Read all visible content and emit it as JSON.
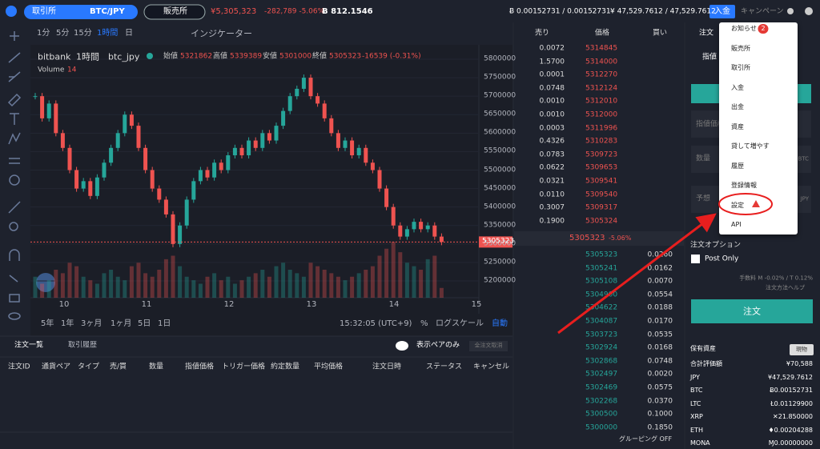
{
  "header": {
    "exchange_tab": "取引所",
    "pair": "BTC/JPY",
    "store_tab": "販売所",
    "price": "¥5,305,323",
    "change": "-282,789 -5.06%",
    "volume": "Ƀ 812.1546",
    "btc_balance": "Ƀ 0.00152731 / 0.00152731",
    "jpy_balance": "¥ 47,529.7612 / 47,529.7612",
    "deposit": "入金",
    "campaign": "キャンペーン"
  },
  "toolbar": {
    "intervals": [
      "1分",
      "5分",
      "15分",
      "1時間",
      "日"
    ],
    "indicator": "インジケーター"
  },
  "price_chart": {
    "source": "bitbank",
    "interval": "1時間",
    "symbol": "btc_jpy",
    "ohlc_labels": [
      "始値",
      "高値",
      "安値",
      "終値"
    ],
    "ohlc_values": [
      "5321862",
      "5339389",
      "5301000",
      "5305323"
    ],
    "change": "-16539 (-0.31%)",
    "volume_label": "Volume",
    "volume_value": "14",
    "yticks": [
      5800000,
      5750000,
      5700000,
      5650000,
      5600000,
      5550000,
      5500000,
      5450000,
      5400000,
      5350000,
      5300000,
      5250000,
      5200000
    ],
    "current_price": "5305323",
    "xticks": [
      "10",
      "11",
      "12",
      "13",
      "14",
      "15"
    ],
    "closes": [
      5700000,
      5640000,
      5680000,
      5600000,
      5560000,
      5500000,
      5450000,
      5470000,
      5430000,
      5480000,
      5520000,
      5560000,
      5600000,
      5650000,
      5620000,
      5560000,
      5500000,
      5450000,
      5420000,
      5380000,
      5300000,
      5350000,
      5420000,
      5470000,
      5500000,
      5480000,
      5520000,
      5500000,
      5540000,
      5560000,
      5540000,
      5580000,
      5560000,
      5600000,
      5580000,
      5620000,
      5660000,
      5700000,
      5720000,
      5750000,
      5700000,
      5680000,
      5640000,
      5600000,
      5560000,
      5580000,
      5540000,
      5560000,
      5520000,
      5500000,
      5450000,
      5400000,
      5350000,
      5320000,
      5340000,
      5360000,
      5340000,
      5350000,
      5320000,
      5305323
    ],
    "volumes": [
      30,
      20,
      25,
      40,
      35,
      50,
      45,
      30,
      25,
      20,
      35,
      40,
      30,
      25,
      45,
      50,
      35,
      30,
      40,
      55,
      60,
      45,
      30,
      25,
      20,
      30,
      35,
      25,
      30,
      20,
      25,
      30,
      35,
      40,
      30,
      45,
      50,
      40,
      35,
      30,
      50,
      45,
      40,
      35,
      30,
      25,
      30,
      35,
      40,
      45,
      60,
      70,
      80,
      65,
      50,
      45,
      40,
      55,
      60,
      14
    ]
  },
  "range_bar": {
    "ranges": [
      "5年",
      "1年",
      "3ヶ月",
      "1ヶ月",
      "5日",
      "1日"
    ],
    "time": "15:32:05 (UTC+9)",
    "percent": "%",
    "log": "ログスケール",
    "auto": "自動"
  },
  "orders_panel": {
    "tabs": [
      "注文一覧",
      "取引履歴"
    ],
    "pair_only": "表示ペアのみ",
    "cancel_all": "全注文取消",
    "columns": [
      "注文ID",
      "通貨ペア",
      "タイプ",
      "売/買",
      "数量",
      "指値価格",
      "トリガー価格",
      "約定数量",
      "平均価格",
      "注文日時",
      "ステータス",
      "キャンセル"
    ]
  },
  "order_book": {
    "headers": [
      "売り",
      "価格",
      "買い"
    ],
    "asks": [
      [
        "0.0072",
        "5314845"
      ],
      [
        "1.5700",
        "5314000"
      ],
      [
        "0.0001",
        "5312270"
      ],
      [
        "0.0748",
        "5312124"
      ],
      [
        "0.0010",
        "5312010"
      ],
      [
        "0.0010",
        "5312000"
      ],
      [
        "0.0003",
        "5311996"
      ],
      [
        "0.4326",
        "5310283"
      ],
      [
        "0.0783",
        "5309723"
      ],
      [
        "0.0622",
        "5309653"
      ],
      [
        "0.0321",
        "5309541"
      ],
      [
        "0.0110",
        "5309540"
      ],
      [
        "0.3007",
        "5309317"
      ],
      [
        "0.1900",
        "5305324"
      ]
    ],
    "mid_price": "5305323",
    "mid_change": "-5.06%",
    "bids": [
      [
        "5305323",
        "0.0260"
      ],
      [
        "5305241",
        "0.0162"
      ],
      [
        "5305108",
        "0.0070"
      ],
      [
        "5304900",
        "0.0554"
      ],
      [
        "5304622",
        "0.0188"
      ],
      [
        "5304087",
        "0.0170"
      ],
      [
        "5303723",
        "0.0535"
      ],
      [
        "5302924",
        "0.0168"
      ],
      [
        "5302868",
        "0.0748"
      ],
      [
        "5302497",
        "0.0020"
      ],
      [
        "5302469",
        "0.0575"
      ],
      [
        "5302268",
        "0.0370"
      ],
      [
        "5300500",
        "0.1000"
      ],
      [
        "5300000",
        "0.1850"
      ]
    ],
    "grouping": "グルーピング OFF"
  },
  "order_form": {
    "tab": "注文",
    "mode": "指値",
    "price_field": "指値価格",
    "amount_field": "数量",
    "amount_unit": "BTC",
    "estimate_field": "予想",
    "estimate_unit": "JPY",
    "options": "注文オプション",
    "post_only": "Post Only",
    "fee": "手数料 M -0.02% / T 0.12%",
    "help": "注文方法ヘルプ",
    "submit": "注文"
  },
  "assets": {
    "title": "保有資産",
    "mode": "現物",
    "rows": [
      [
        "合計評価額",
        "¥70,588"
      ],
      [
        "JPY",
        "¥47,529.7612"
      ],
      [
        "BTC",
        "Ƀ0.00152731"
      ],
      [
        "LTC",
        "Ł0.01129900"
      ],
      [
        "XRP",
        "✕21.850000"
      ],
      [
        "ETH",
        "♦0.00204288"
      ],
      [
        "MONA",
        "Ɱ0.00000000"
      ]
    ]
  },
  "menu": {
    "items": [
      "お知らせ",
      "販売所",
      "取引所",
      "入金",
      "出金",
      "資産",
      "貸して増やす",
      "履歴",
      "登録情報",
      "設定",
      "API"
    ],
    "badge": "2"
  }
}
